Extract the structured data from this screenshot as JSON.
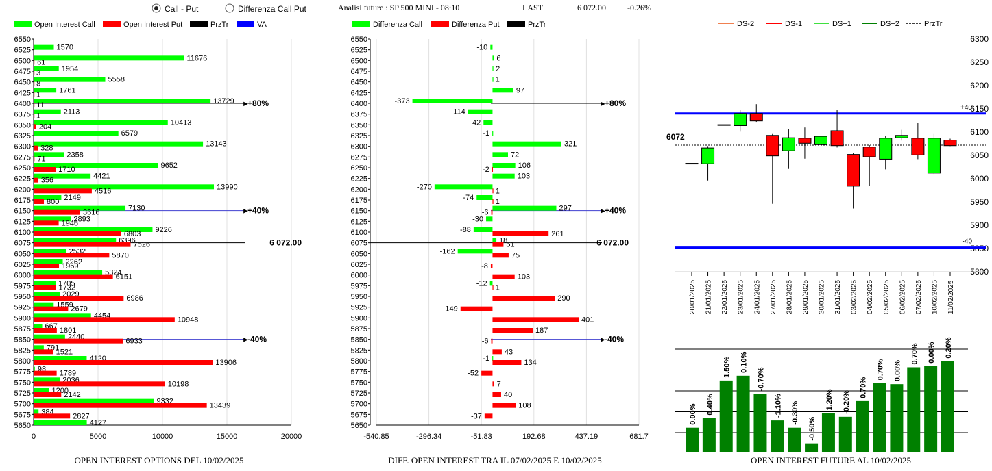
{
  "header": {
    "mode_options": [
      "Call - Put",
      "Differenza Call Put"
    ],
    "mode_selected": 0,
    "title": "Analisi future : SP 500 MINI - 08:10",
    "last_label": "LAST",
    "last_value": "6 072.00",
    "change": "-0.26%"
  },
  "colors": {
    "green": "#00ff00",
    "red": "#ff0000",
    "black": "#000000",
    "blue": "#0000ff",
    "dark_green": "#008000",
    "orange": "#f08050",
    "light_green": "#40e040",
    "va_line": "#4040d0"
  },
  "chart_data": [
    {
      "type": "bar",
      "orientation": "horizontal",
      "title": "OPEN INTEREST OPTIONS DEL 10/02/2025",
      "legend": [
        "Open Interest Call",
        "Open Interest Put",
        "PrzTr",
        "VA"
      ],
      "categories": [
        "6550",
        "6525",
        "6500",
        "6475",
        "6450",
        "6425",
        "6400",
        "6375",
        "6350",
        "6325",
        "6300",
        "6275",
        "6250",
        "6225",
        "6200",
        "6175",
        "6150",
        "6125",
        "6100",
        "6075",
        "6050",
        "6025",
        "6000",
        "5975",
        "5950",
        "5925",
        "5900",
        "5875",
        "5850",
        "5825",
        "5800",
        "5775",
        "5750",
        "5725",
        "5700",
        "5675",
        "5650"
      ],
      "series": [
        {
          "name": "Open Interest Call",
          "values": [
            null,
            1570,
            11676,
            1954,
            5558,
            1761,
            13729,
            2113,
            10413,
            6579,
            13143,
            2358,
            9652,
            4421,
            13990,
            2149,
            7130,
            2893,
            9226,
            6396,
            2532,
            2262,
            5324,
            1705,
            2029,
            1559,
            4454,
            667,
            2440,
            791,
            4120,
            98,
            2036,
            1200,
            9332,
            384,
            4127
          ]
        },
        {
          "name": "Open Interest Put",
          "values": [
            null,
            null,
            61,
            3,
            8,
            1,
            11,
            1,
            204,
            null,
            328,
            71,
            1710,
            356,
            4516,
            800,
            3616,
            1946,
            6803,
            7526,
            5870,
            1969,
            6151,
            1732,
            6986,
            2679,
            10948,
            1801,
            6933,
            1521,
            13906,
            1789,
            10198,
            2142,
            13439,
            2827,
            null
          ]
        }
      ],
      "xticks": [
        "0",
        "5000",
        "10000",
        "15000",
        "20000"
      ],
      "xlim": [
        0,
        20000
      ],
      "reference_lines": [
        {
          "at": "6400",
          "label": "+80%"
        },
        {
          "at": "6150",
          "label": "+40%"
        },
        {
          "at": "6075",
          "label": "6 072.00"
        },
        {
          "at": "5850",
          "label": "-40%"
        }
      ]
    },
    {
      "type": "bar",
      "orientation": "horizontal",
      "title": "DIFF. OPEN INTEREST TRA IL 07/02/2025 E 10/02/2025",
      "legend": [
        "Differenza Call",
        "Differenza Put",
        "PrzTr"
      ],
      "categories": [
        "6550",
        "6525",
        "6500",
        "6475",
        "6450",
        "6425",
        "6400",
        "6375",
        "6350",
        "6325",
        "6300",
        "6275",
        "6250",
        "6225",
        "6200",
        "6175",
        "6150",
        "6125",
        "6100",
        "6075",
        "6050",
        "6025",
        "6000",
        "5975",
        "5950",
        "5925",
        "5900",
        "5875",
        "5850",
        "5825",
        "5800",
        "5775",
        "5750",
        "5725",
        "5700",
        "5675",
        "5650"
      ],
      "series": [
        {
          "name": "Differenza Call",
          "values": [
            null,
            -10,
            6,
            2,
            1,
            97,
            -373,
            -114,
            -42,
            -1,
            321,
            72,
            106,
            103,
            -270,
            -74,
            297,
            -30,
            -88,
            18,
            -162,
            null,
            null,
            -12,
            null,
            null,
            null,
            null,
            null,
            null,
            -1,
            null,
            null,
            null,
            null,
            null,
            null
          ]
        },
        {
          "name": "Differenza Put",
          "values": [
            null,
            null,
            null,
            null,
            null,
            null,
            null,
            null,
            null,
            null,
            null,
            null,
            -2,
            null,
            1,
            1,
            -6,
            null,
            261,
            51,
            75,
            -8,
            103,
            1,
            290,
            -149,
            401,
            187,
            -6,
            43,
            134,
            -52,
            7,
            40,
            108,
            -37,
            null
          ]
        }
      ],
      "xticks": [
        "-540.85",
        "-296.34",
        "-51.83",
        "192.68",
        "437.19",
        "681.7"
      ],
      "xlim": [
        -540.85,
        681.7
      ],
      "reference_lines": [
        {
          "at": "6400",
          "label": "+80%"
        },
        {
          "at": "6150",
          "label": "+40%"
        },
        {
          "at": "6075",
          "label": "6 072.00"
        },
        {
          "at": "5850",
          "label": "-40%"
        }
      ]
    },
    {
      "type": "candlestick",
      "legend": [
        "DS-2",
        "DS-1",
        "DS+1",
        "DS+2",
        "PrzTr"
      ],
      "categories": [
        "20/01/2025",
        "21/01/2025",
        "22/01/2025",
        "23/01/2025",
        "24/01/2025",
        "27/01/2025",
        "28/01/2025",
        "29/01/2025",
        "30/01/2025",
        "31/01/2025",
        "03/02/2025",
        "04/02/2025",
        "05/02/2025",
        "06/02/2025",
        "07/02/2025",
        "10/02/2025",
        "11/02/2025"
      ],
      "ohlc": [
        {
          "o": 6033,
          "h": 6033,
          "l": 6033,
          "c": 6033
        },
        {
          "o": 6032,
          "h": 6070,
          "l": 5996,
          "c": 6066
        },
        {
          "o": 6116,
          "h": 6116,
          "l": 6116,
          "c": 6116
        },
        {
          "o": 6114,
          "h": 6148,
          "l": 6101,
          "c": 6140
        },
        {
          "o": 6140,
          "h": 6160,
          "l": 6122,
          "c": 6124
        },
        {
          "o": 6093,
          "h": 6096,
          "l": 5946,
          "c": 6049
        },
        {
          "o": 6060,
          "h": 6106,
          "l": 6021,
          "c": 6088
        },
        {
          "o": 6087,
          "h": 6110,
          "l": 6043,
          "c": 6076
        },
        {
          "o": 6073,
          "h": 6116,
          "l": 6052,
          "c": 6091
        },
        {
          "o": 6103,
          "h": 6148,
          "l": 6067,
          "c": 6071
        },
        {
          "o": 6052,
          "h": 6055,
          "l": 5936,
          "c": 5984
        },
        {
          "o": 6068,
          "h": 6072,
          "l": 5984,
          "c": 6047
        },
        {
          "o": 6042,
          "h": 6092,
          "l": 6020,
          "c": 6087
        },
        {
          "o": 6088,
          "h": 6105,
          "l": 6082,
          "c": 6093
        },
        {
          "o": 6087,
          "h": 6120,
          "l": 6042,
          "c": 6051
        },
        {
          "o": 6012,
          "h": 6096,
          "l": 6010,
          "c": 6087
        },
        {
          "o": 6083,
          "h": 6086,
          "l": 6070,
          "c": 6071
        }
      ],
      "price_line": {
        "value": 6072,
        "label": "6072"
      },
      "bands": [
        {
          "value": 6140,
          "label": "+40"
        },
        {
          "value": 5852,
          "label": "-40"
        }
      ],
      "yticks": [
        "6300",
        "6250",
        "6200",
        "6150",
        "6100",
        "6050",
        "6000",
        "5950",
        "5900",
        "5850",
        "5800"
      ],
      "ylim": [
        5800,
        6300
      ]
    },
    {
      "type": "bar",
      "title": "OPEN INTEREST FUTURE AL 10/02/2025",
      "labels": [
        "0.00%",
        "0.40%",
        "1.50%",
        "0.10%",
        "-0.70%",
        "-1.10%",
        "-0.30%",
        "-0.50%",
        "1.20%",
        "-0.20%",
        "0.70%",
        "0.70%",
        "0.00%",
        "0.70%",
        "0.00%",
        "0.20%"
      ],
      "values": [
        0.2,
        0.28,
        0.59,
        0.63,
        0.48,
        0.26,
        0.2,
        0.07,
        0.32,
        0.29,
        0.42,
        0.57,
        0.56,
        0.7,
        0.71,
        0.75
      ]
    }
  ]
}
